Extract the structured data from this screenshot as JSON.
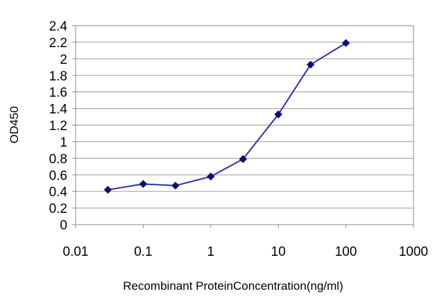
{
  "chart_data": {
    "type": "line",
    "title": "",
    "xlabel": "Recombinant ProteinConcentration(ng/ml)",
    "ylabel": "OD450",
    "x_scale": "log",
    "xlim": [
      0.01,
      1000
    ],
    "ylim": [
      0,
      2.4
    ],
    "x_ticks": [
      "0.01",
      "0.1",
      "1",
      "10",
      "100",
      "1000"
    ],
    "y_ticks": [
      "0",
      "0.2",
      "0.4",
      "0.6",
      "0.8",
      "1",
      "1.2",
      "1.4",
      "1.6",
      "1.8",
      "2",
      "2.2",
      "2.4"
    ],
    "grid": "horizontal",
    "legend": "none",
    "series": [
      {
        "color": "#2B2FA8",
        "marker": "diamond",
        "marker_color": "#0B0B7A",
        "x": [
          0.03,
          0.1,
          0.3,
          1,
          3,
          10,
          30,
          100
        ],
        "y": [
          0.42,
          0.49,
          0.47,
          0.58,
          0.79,
          1.33,
          1.93,
          2.19
        ]
      }
    ]
  }
}
